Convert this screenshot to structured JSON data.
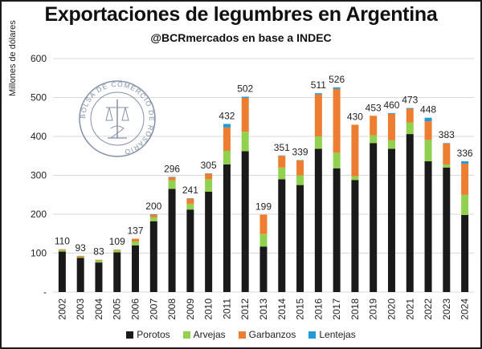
{
  "chart_data": {
    "type": "bar",
    "stacked": true,
    "title": "Exportaciones de legumbres en Argentina",
    "subtitle": "@BCRmercados en base a INDEC",
    "ylabel": "Millones de dólares",
    "xlabel": "",
    "ylim": [
      0,
      600
    ],
    "yticks": [
      "-",
      "100",
      "200",
      "300",
      "400",
      "500",
      "600"
    ],
    "grid": true,
    "legend_position": "bottom",
    "categories": [
      "2002",
      "2003",
      "2004",
      "2005",
      "2006",
      "2007",
      "2008",
      "2009",
      "2010",
      "2011",
      "2012",
      "2013",
      "2014",
      "2015",
      "2016",
      "2017",
      "2018",
      "2019",
      "2020",
      "2021",
      "2022",
      "2023",
      "2024"
    ],
    "totals": [
      110,
      93,
      83,
      109,
      137,
      200,
      296,
      241,
      305,
      432,
      502,
      199,
      351,
      339,
      511,
      526,
      430,
      453,
      460,
      473,
      448,
      383,
      336
    ],
    "series": [
      {
        "name": "Porotos",
        "color": "#1a1a1a",
        "values": [
          104,
          88,
          76,
          102,
          120,
          182,
          265,
          212,
          258,
          328,
          362,
          117,
          290,
          275,
          368,
          318,
          288,
          383,
          368,
          406,
          336,
          320,
          198
        ]
      },
      {
        "name": "Arvejas",
        "color": "#92d050",
        "values": [
          4,
          2,
          5,
          5,
          10,
          10,
          22,
          15,
          32,
          35,
          50,
          32,
          30,
          25,
          32,
          40,
          10,
          20,
          22,
          30,
          55,
          8,
          52
        ]
      },
      {
        "name": "Garbanzos",
        "color": "#ed7d31",
        "values": [
          2,
          3,
          2,
          2,
          7,
          7,
          8,
          13,
          14,
          60,
          87,
          50,
          30,
          38,
          108,
          164,
          132,
          50,
          68,
          35,
          48,
          54,
          80
        ]
      },
      {
        "name": "Lentejas",
        "color": "#1f9bd6",
        "values": [
          0,
          0,
          0,
          0,
          0,
          1,
          1,
          1,
          1,
          9,
          3,
          0,
          1,
          1,
          3,
          4,
          0,
          0,
          2,
          2,
          9,
          1,
          6
        ]
      }
    ]
  },
  "watermark": {
    "text": "BOLSA DE COMERCIO DE ROSARIO"
  }
}
